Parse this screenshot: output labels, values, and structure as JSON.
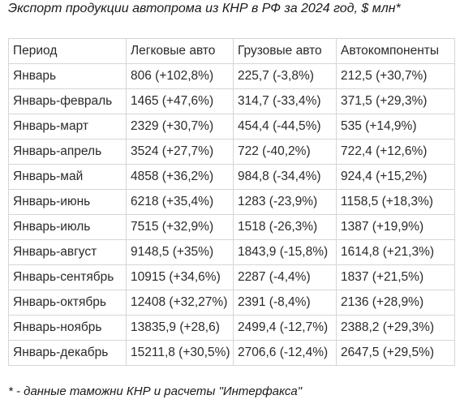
{
  "title": "Экспорт продукции автопрома из КНР в РФ за 2024 год, $ млн*",
  "table": {
    "headers": [
      "Период",
      "Легковые авто",
      "Грузовые авто",
      "Автокомпоненты"
    ],
    "rows": [
      [
        "Январь",
        "806 (+102,8%)",
        "225,7 (-3,8%)",
        "212,5 (+30,7%)"
      ],
      [
        "Январь-февраль",
        "1465 (+47,6%)",
        "314,7 (-33,4%)",
        "371,5 (+29,3%)"
      ],
      [
        "Январь-март",
        "2329 (+30,7%)",
        "454,4 (-44,5%)",
        "535 (+14,9%)"
      ],
      [
        "Январь-апрель",
        "3524 (+27,7%)",
        "722 (-40,2%)",
        "722,4 (+12,6%)"
      ],
      [
        "Январь-май",
        "4858 (+36,2%)",
        "984,8 (-34,4%)",
        "924,4 (+15,2%)"
      ],
      [
        "Январь-июнь",
        "6218 (+35,4%)",
        "1283 (-23,9%)",
        "1158,5 (+18,3%)"
      ],
      [
        "Январь-июль",
        "7515 (+32,9%)",
        "1518 (-26,3%)",
        "1387 (+19,9%)"
      ],
      [
        "Январь-август",
        "9148,5 (+35%)",
        "1843,9 (-15,8%)",
        "1614,8 (+21,3%)"
      ],
      [
        "Январь-сентябрь",
        "10915 (+34,6%)",
        "2287 (-4,4%)",
        "1837 (+21,5%)"
      ],
      [
        "Январь-октябрь",
        "12408 (+32,27%)",
        "2391 (-8,4%)",
        "2136 (+28,9%)"
      ],
      [
        "Январь-ноябрь",
        "13835,9 (+28,6)",
        "2499,4 (-12,7%)",
        "2388,2 (+29,3%)"
      ],
      [
        "Январь-декабрь",
        "15211,8 (+30,5%)",
        "2706,6 (-12,4%)",
        "2647,5 (+29,5%)"
      ]
    ]
  },
  "footnote": "* - данные таможни КНР и расчеты \"Интерфакса\""
}
